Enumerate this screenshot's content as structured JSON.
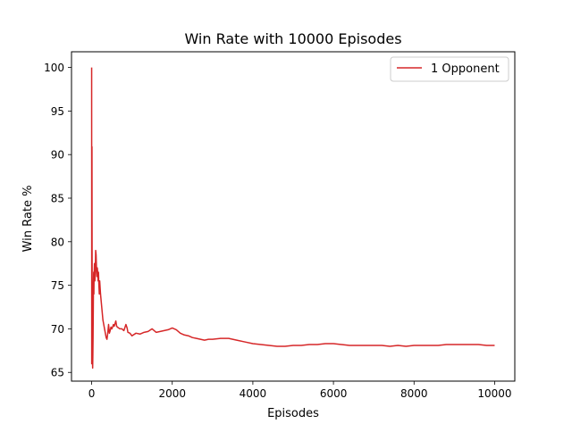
{
  "colors": {
    "series": "#d62728",
    "axes": "#000000",
    "background": "#ffffff"
  },
  "chart_data": {
    "type": "line",
    "title": "Win Rate with 10000 Episodes",
    "xlabel": "Episodes",
    "ylabel": "Win Rate %",
    "xlim": [
      -500,
      10500
    ],
    "ylim": [
      64.0,
      101.8
    ],
    "x_ticks": [
      0,
      2000,
      4000,
      6000,
      8000,
      10000
    ],
    "y_ticks": [
      65,
      70,
      75,
      80,
      85,
      90,
      95,
      100
    ],
    "grid": false,
    "legend_position": "top-right",
    "series": [
      {
        "name": "1 Opponent",
        "color": "#d62728",
        "points": [
          [
            0,
            100
          ],
          [
            2,
            66
          ],
          [
            4,
            88
          ],
          [
            6,
            79
          ],
          [
            8,
            90.9
          ],
          [
            10,
            82
          ],
          [
            12,
            76
          ],
          [
            15,
            71
          ],
          [
            18,
            68
          ],
          [
            20,
            66.5
          ],
          [
            25,
            65.5
          ],
          [
            30,
            67
          ],
          [
            35,
            69
          ],
          [
            40,
            72
          ],
          [
            45,
            75
          ],
          [
            50,
            76.5
          ],
          [
            55,
            74
          ],
          [
            60,
            76
          ],
          [
            70,
            77.5
          ],
          [
            80,
            75.5
          ],
          [
            90,
            76.5
          ],
          [
            100,
            79
          ],
          [
            110,
            78.5
          ],
          [
            120,
            77
          ],
          [
            130,
            76
          ],
          [
            140,
            77
          ],
          [
            150,
            76.5
          ],
          [
            160,
            75.5
          ],
          [
            170,
            76.5
          ],
          [
            180,
            75
          ],
          [
            190,
            74
          ],
          [
            200,
            75.5
          ],
          [
            220,
            74
          ],
          [
            240,
            73
          ],
          [
            260,
            72
          ],
          [
            280,
            71
          ],
          [
            300,
            70.5
          ],
          [
            320,
            70
          ],
          [
            340,
            69.5
          ],
          [
            360,
            69
          ],
          [
            380,
            68.8
          ],
          [
            400,
            69.5
          ],
          [
            420,
            70.5
          ],
          [
            440,
            69.5
          ],
          [
            460,
            69.8
          ],
          [
            480,
            70.2
          ],
          [
            500,
            70.0
          ],
          [
            520,
            70.2
          ],
          [
            540,
            70.5
          ],
          [
            560,
            70.3
          ],
          [
            580,
            70.6
          ],
          [
            600,
            70.9
          ],
          [
            620,
            70.3
          ],
          [
            640,
            70.2
          ],
          [
            700,
            70.0
          ],
          [
            750,
            70.0
          ],
          [
            800,
            69.8
          ],
          [
            850,
            70.5
          ],
          [
            880,
            70.1
          ],
          [
            900,
            69.6
          ],
          [
            950,
            69.5
          ],
          [
            1000,
            69.2
          ],
          [
            1100,
            69.5
          ],
          [
            1200,
            69.4
          ],
          [
            1300,
            69.6
          ],
          [
            1400,
            69.7
          ],
          [
            1500,
            70.0
          ],
          [
            1600,
            69.6
          ],
          [
            1700,
            69.7
          ],
          [
            1800,
            69.8
          ],
          [
            1900,
            69.9
          ],
          [
            2000,
            70.1
          ],
          [
            2100,
            69.9
          ],
          [
            2200,
            69.5
          ],
          [
            2300,
            69.3
          ],
          [
            2400,
            69.2
          ],
          [
            2500,
            69.0
          ],
          [
            2600,
            68.9
          ],
          [
            2700,
            68.8
          ],
          [
            2800,
            68.7
          ],
          [
            2900,
            68.8
          ],
          [
            3000,
            68.8
          ],
          [
            3200,
            68.9
          ],
          [
            3400,
            68.9
          ],
          [
            3600,
            68.7
          ],
          [
            3800,
            68.5
          ],
          [
            4000,
            68.3
          ],
          [
            4200,
            68.2
          ],
          [
            4400,
            68.1
          ],
          [
            4600,
            68.0
          ],
          [
            4800,
            68.0
          ],
          [
            5000,
            68.1
          ],
          [
            5200,
            68.1
          ],
          [
            5400,
            68.2
          ],
          [
            5600,
            68.2
          ],
          [
            5800,
            68.3
          ],
          [
            6000,
            68.3
          ],
          [
            6200,
            68.2
          ],
          [
            6400,
            68.1
          ],
          [
            6600,
            68.1
          ],
          [
            6800,
            68.1
          ],
          [
            7000,
            68.1
          ],
          [
            7200,
            68.1
          ],
          [
            7400,
            68.0
          ],
          [
            7600,
            68.1
          ],
          [
            7800,
            68.0
          ],
          [
            8000,
            68.1
          ],
          [
            8200,
            68.1
          ],
          [
            8400,
            68.1
          ],
          [
            8600,
            68.1
          ],
          [
            8800,
            68.2
          ],
          [
            9000,
            68.2
          ],
          [
            9200,
            68.2
          ],
          [
            9400,
            68.2
          ],
          [
            9600,
            68.2
          ],
          [
            9800,
            68.1
          ],
          [
            10000,
            68.1
          ]
        ]
      }
    ]
  }
}
